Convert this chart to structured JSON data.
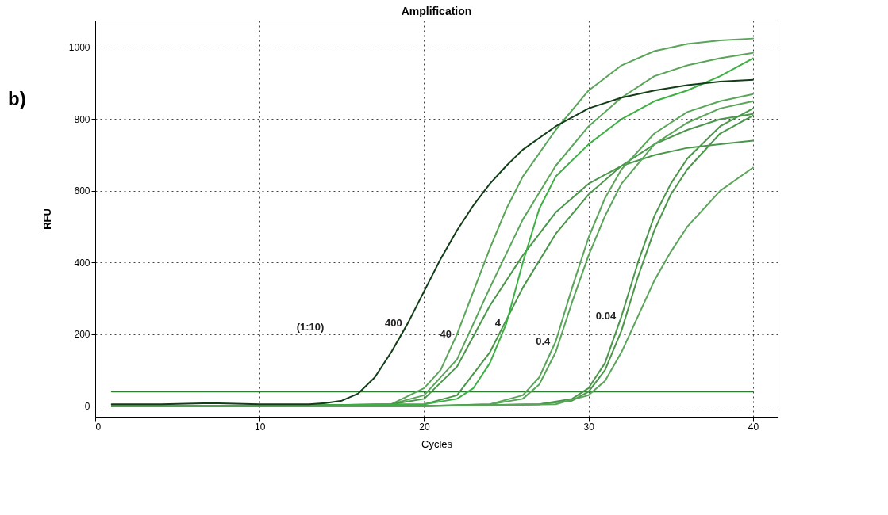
{
  "chart_data": {
    "type": "line",
    "title": "Amplification",
    "xlabel": "Cycles",
    "ylabel": "RFU",
    "xlim": [
      0,
      41.5
    ],
    "ylim": [
      -30,
      1075
    ],
    "xticks": [
      0,
      10,
      20,
      30,
      40
    ],
    "yticks": [
      0,
      200,
      400,
      600,
      800,
      1000
    ],
    "grid": true,
    "series": [
      {
        "color": "#2e7d32",
        "x": [
          1,
          40
        ],
        "values": [
          40,
          40
        ]
      },
      {
        "color": "#5aa55a",
        "x": [
          1,
          10,
          18,
          20,
          21,
          22,
          23,
          24,
          25,
          26,
          28,
          30,
          32,
          34,
          36,
          38,
          40
        ],
        "values": [
          0,
          0,
          5,
          50,
          100,
          200,
          320,
          440,
          550,
          640,
          770,
          880,
          950,
          990,
          1010,
          1020,
          1025
        ]
      },
      {
        "color": "#5aa55a",
        "x": [
          1,
          10,
          18,
          20,
          22,
          24,
          26,
          28,
          30,
          32,
          34,
          36,
          38,
          40
        ],
        "values": [
          0,
          0,
          5,
          30,
          130,
          330,
          520,
          670,
          780,
          860,
          920,
          950,
          970,
          985
        ]
      },
      {
        "color": "#4a964a",
        "x": [
          1,
          10,
          18,
          20,
          22,
          24,
          26,
          28,
          30,
          32,
          34,
          36,
          38,
          40
        ],
        "values": [
          0,
          0,
          5,
          20,
          110,
          280,
          420,
          540,
          620,
          670,
          700,
          720,
          730,
          740
        ]
      },
      {
        "color": "#4a964a",
        "x": [
          1,
          10,
          20,
          22,
          24,
          26,
          28,
          30,
          32,
          34,
          36,
          38,
          40
        ],
        "values": [
          0,
          0,
          5,
          30,
          150,
          330,
          480,
          590,
          670,
          730,
          770,
          800,
          815
        ]
      },
      {
        "color": "#3cb043",
        "x": [
          1,
          10,
          20,
          22,
          23,
          24,
          25,
          26,
          27,
          28,
          30,
          32,
          34,
          36,
          38,
          40
        ],
        "values": [
          0,
          0,
          5,
          20,
          50,
          120,
          230,
          400,
          550,
          640,
          730,
          800,
          850,
          880,
          920,
          970
        ]
      },
      {
        "color": "#5aa55a",
        "x": [
          1,
          10,
          20,
          24,
          26,
          27,
          28,
          29,
          30,
          31,
          32,
          34,
          36,
          38,
          40
        ],
        "values": [
          0,
          0,
          0,
          5,
          30,
          80,
          180,
          330,
          470,
          580,
          660,
          760,
          820,
          850,
          870
        ]
      },
      {
        "color": "#5aa55a",
        "x": [
          1,
          10,
          20,
          24,
          26,
          27,
          28,
          29,
          30,
          31,
          32,
          34,
          36,
          38,
          40
        ],
        "values": [
          0,
          0,
          0,
          5,
          20,
          60,
          150,
          290,
          420,
          530,
          620,
          730,
          790,
          830,
          850
        ]
      },
      {
        "color": "#4a964a",
        "x": [
          1,
          10,
          20,
          27,
          29,
          30,
          31,
          32,
          33,
          34,
          35,
          36,
          38,
          40
        ],
        "values": [
          0,
          0,
          0,
          5,
          20,
          50,
          120,
          250,
          400,
          530,
          620,
          690,
          780,
          830
        ]
      },
      {
        "color": "#4a964a",
        "x": [
          1,
          10,
          20,
          27,
          29,
          30,
          31,
          32,
          33,
          34,
          35,
          36,
          38,
          40
        ],
        "values": [
          0,
          0,
          0,
          5,
          15,
          40,
          100,
          210,
          360,
          490,
          590,
          660,
          760,
          810
        ]
      },
      {
        "color": "#5aa55a",
        "x": [
          1,
          10,
          20,
          28,
          30,
          31,
          32,
          33,
          34,
          35,
          36,
          38,
          40
        ],
        "values": [
          0,
          0,
          0,
          5,
          30,
          70,
          150,
          250,
          350,
          430,
          500,
          600,
          665
        ]
      },
      {
        "color": "#123d17",
        "x": [
          1,
          4,
          7,
          10,
          13,
          14,
          15,
          16,
          17,
          18,
          19,
          20,
          21,
          22,
          23,
          24,
          25,
          26,
          28,
          30,
          32,
          34,
          36,
          38,
          40
        ],
        "values": [
          5,
          5,
          8,
          5,
          5,
          8,
          15,
          35,
          80,
          150,
          230,
          320,
          410,
          490,
          560,
          620,
          670,
          715,
          780,
          830,
          860,
          880,
          895,
          905,
          910
        ]
      }
    ],
    "annotations": [
      "b)",
      "(1:10)",
      {
        "text": "400",
        "x": 19,
        "y": 230
      },
      {
        "text": "40",
        "x": 22,
        "y": 200
      },
      {
        "text": "4",
        "x": 25,
        "y": 230
      },
      {
        "text": "0.4",
        "x": 28,
        "y": 180
      },
      {
        "text": "0.04",
        "x": 32,
        "y": 250
      }
    ]
  }
}
